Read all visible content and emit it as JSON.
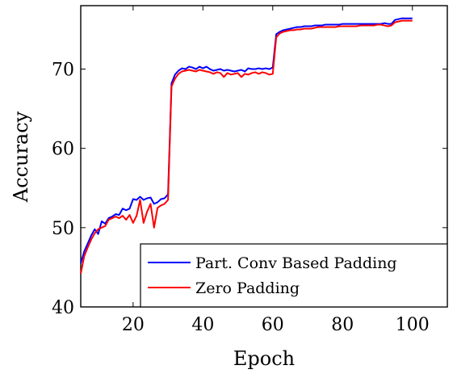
{
  "chart_data": {
    "type": "line",
    "title": "",
    "xlabel": "Epoch",
    "ylabel": "Accuracy",
    "xlim": [
      5,
      110
    ],
    "ylim": [
      40,
      78
    ],
    "xticks": [
      20,
      40,
      60,
      80,
      100
    ],
    "yticks": [
      40,
      50,
      60,
      70
    ],
    "grid": false,
    "legend_position": "bottom-right",
    "x": [
      5,
      6,
      7,
      8,
      9,
      10,
      11,
      12,
      13,
      14,
      15,
      16,
      17,
      18,
      19,
      20,
      21,
      22,
      23,
      24,
      25,
      26,
      27,
      28,
      29,
      30,
      31,
      32,
      33,
      34,
      35,
      36,
      37,
      38,
      39,
      40,
      41,
      42,
      43,
      44,
      45,
      46,
      47,
      48,
      49,
      50,
      51,
      52,
      53,
      54,
      55,
      56,
      57,
      58,
      59,
      60,
      61,
      62,
      63,
      64,
      65,
      66,
      67,
      68,
      69,
      70,
      71,
      72,
      73,
      74,
      75,
      76,
      77,
      78,
      79,
      80,
      81,
      82,
      83,
      84,
      85,
      86,
      87,
      88,
      89,
      90,
      91,
      92,
      93,
      94,
      95,
      96,
      97,
      98,
      99,
      100
    ],
    "series": [
      {
        "name": "Part. Conv Based Padding",
        "color": "#0000ff",
        "values": [
          45.5,
          47.0,
          48.0,
          49.0,
          49.8,
          49.2,
          50.8,
          50.5,
          51.2,
          51.4,
          51.7,
          51.6,
          52.4,
          52.2,
          52.4,
          53.6,
          53.5,
          53.9,
          53.5,
          53.7,
          53.8,
          53.0,
          53.2,
          53.6,
          53.7,
          54.2,
          68.2,
          69.3,
          69.8,
          70.1,
          70.0,
          70.3,
          70.2,
          70.0,
          70.3,
          70.1,
          70.3,
          70.0,
          69.8,
          69.9,
          70.0,
          69.8,
          69.9,
          69.8,
          69.7,
          69.8,
          69.9,
          69.7,
          70.1,
          70.0,
          70.0,
          70.1,
          70.0,
          70.1,
          70.0,
          70.2,
          74.4,
          74.7,
          74.9,
          75.0,
          75.1,
          75.2,
          75.3,
          75.3,
          75.4,
          75.4,
          75.4,
          75.5,
          75.5,
          75.5,
          75.6,
          75.6,
          75.6,
          75.6,
          75.6,
          75.7,
          75.7,
          75.7,
          75.7,
          75.7,
          75.7,
          75.7,
          75.7,
          75.7,
          75.7,
          75.7,
          75.7,
          75.8,
          75.7,
          75.7,
          76.2,
          76.3,
          76.4,
          76.4,
          76.4,
          76.4
        ]
      },
      {
        "name": "Zero Padding",
        "color": "#ff0000",
        "values": [
          44.2,
          46.4,
          47.5,
          48.5,
          49.3,
          49.8,
          50.0,
          50.2,
          51.0,
          51.2,
          51.4,
          51.2,
          51.5,
          51.0,
          51.6,
          50.6,
          51.5,
          53.5,
          50.6,
          52.0,
          53.0,
          50.0,
          52.5,
          52.8,
          53.0,
          53.5,
          67.8,
          68.8,
          69.4,
          69.7,
          69.8,
          69.9,
          69.8,
          69.7,
          69.9,
          69.8,
          69.7,
          69.6,
          69.4,
          69.6,
          69.5,
          69.0,
          69.5,
          69.3,
          69.4,
          69.5,
          69.0,
          69.4,
          69.3,
          69.5,
          69.6,
          69.4,
          69.6,
          69.5,
          69.3,
          69.4,
          74.0,
          74.5,
          74.7,
          74.8,
          74.9,
          74.9,
          75.0,
          75.0,
          75.1,
          75.1,
          75.1,
          75.2,
          75.3,
          75.3,
          75.3,
          75.3,
          75.3,
          75.3,
          75.4,
          75.4,
          75.4,
          75.4,
          75.4,
          75.4,
          75.5,
          75.5,
          75.5,
          75.5,
          75.5,
          75.6,
          75.6,
          75.5,
          75.4,
          75.5,
          75.9,
          76.0,
          76.1,
          76.1,
          76.1,
          76.1
        ]
      }
    ]
  }
}
